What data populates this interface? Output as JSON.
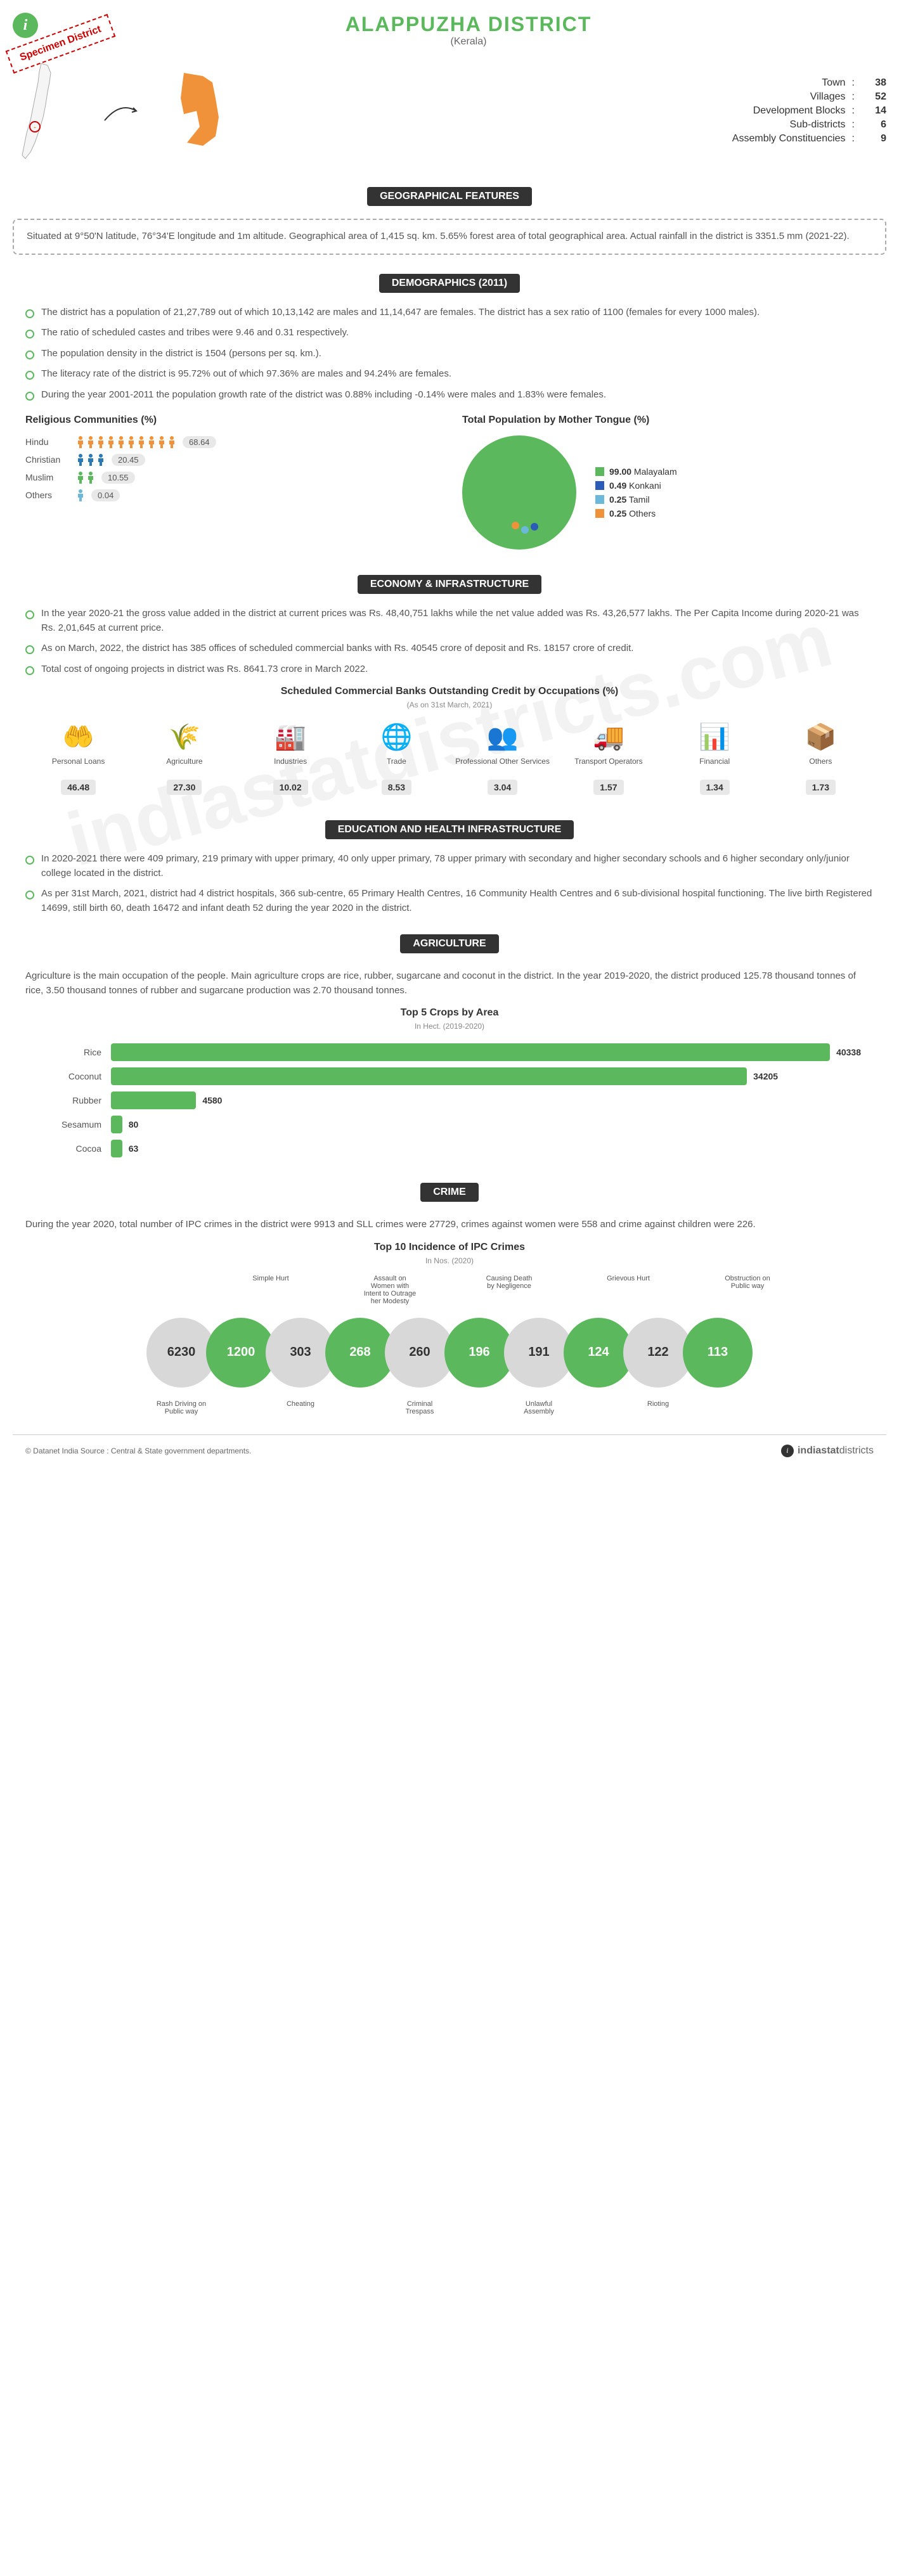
{
  "header": {
    "title": "ALAPPUZHA DISTRICT",
    "subtitle": "(Kerala)",
    "specimen": "Specimen District"
  },
  "top_stats": [
    {
      "label": "Town",
      "value": "38"
    },
    {
      "label": "Villages",
      "value": "52"
    },
    {
      "label": "Development Blocks",
      "value": "14"
    },
    {
      "label": "Sub-districts",
      "value": "6"
    },
    {
      "label": "Assembly Constituencies",
      "value": "9"
    }
  ],
  "sections": {
    "geo": {
      "title": "GEOGRAPHICAL FEATURES",
      "text": "Situated at 9°50'N latitude, 76°34'E longitude and 1m altitude. Geographical area of 1,415 sq. km. 5.65% forest area of total geographical area. Actual rainfall in the district is 3351.5 mm (2021-22)."
    },
    "demo": {
      "title": "DEMOGRAPHICS (2011)"
    },
    "econ": {
      "title": "ECONOMY & INFRASTRUCTURE"
    },
    "edu": {
      "title": "EDUCATION AND HEALTH INFRASTRUCTURE"
    },
    "agri": {
      "title": "AGRICULTURE"
    },
    "crime": {
      "title": "CRIME"
    }
  },
  "demographics_bullets": [
    "The district has a population of 21,27,789 out of which 10,13,142 are males and 11,14,647 are females. The district has a sex ratio of 1100 (females for every 1000 males).",
    "The ratio of scheduled castes and tribes were 9.46 and 0.31 respectively.",
    "The population density in the district is 1504 (persons per sq. km.).",
    "The literacy rate of the district is 95.72% out of which 97.36% are males and 94.24% are females.",
    "During the year 2001-2011 the population growth rate of the district was 0.88% including -0.14% were males and 1.83% were females."
  ],
  "religion": {
    "title": "Religious Communities (%)",
    "rows": [
      {
        "label": "Hindu",
        "value": "68.64",
        "icons": 10,
        "color": "#f0923a"
      },
      {
        "label": "Christian",
        "value": "20.45",
        "icons": 3,
        "color": "#2a7ab8"
      },
      {
        "label": "Muslim",
        "value": "10.55",
        "icons": 2,
        "color": "#5cb85c"
      },
      {
        "label": "Others",
        "value": "0.04",
        "icons": 1,
        "color": "#6bb8d8"
      }
    ]
  },
  "mothertongue": {
    "title": "Total Population by Mother Tongue (%)",
    "slices": [
      {
        "label": "Malayalam",
        "value": "99.00",
        "color": "#5cb85c"
      },
      {
        "label": "Konkani",
        "value": "0.49",
        "color": "#2a5cb8"
      },
      {
        "label": "Tamil",
        "value": "0.25",
        "color": "#6bb8d8"
      },
      {
        "label": "Others",
        "value": "0.25",
        "color": "#f0923a"
      }
    ]
  },
  "economy_bullets": [
    "In the year 2020-21 the gross value added in the district at current prices was Rs. 48,40,751 lakhs while the net value added was Rs. 43,26,577 lakhs. The Per Capita Income during 2020-21 was Rs. 2,01,645 at current price.",
    "As on March, 2022, the district has 385 offices of scheduled commercial banks with Rs. 40545 crore of deposit and Rs. 18157 crore of credit.",
    "Total cost of ongoing projects in district was Rs. 8641.73 crore in March 2022."
  ],
  "bank_credit": {
    "title": "Scheduled Commercial Banks Outstanding Credit by Occupations (%)",
    "note": "(As on 31st March, 2021)",
    "items": [
      {
        "label": "Personal Loans",
        "value": "46.48",
        "icon": "hand"
      },
      {
        "label": "Agriculture",
        "value": "27.30",
        "icon": "wheat"
      },
      {
        "label": "Industries",
        "value": "10.02",
        "icon": "factory"
      },
      {
        "label": "Trade",
        "value": "8.53",
        "icon": "globe"
      },
      {
        "label": "Professional Other Services",
        "value": "3.04",
        "icon": "people"
      },
      {
        "label": "Transport Operators",
        "value": "1.57",
        "icon": "truck"
      },
      {
        "label": "Financial",
        "value": "1.34",
        "icon": "chart"
      },
      {
        "label": "Others",
        "value": "1.73",
        "icon": "box"
      }
    ]
  },
  "education_bullets": [
    "In 2020-2021 there were 409 primary, 219 primary with upper primary, 40 only upper primary, 78 upper primary with secondary and higher secondary schools and 6 higher secondary only/junior college located in the district.",
    "As per 31st March, 2021, district had 4 district hospitals, 366 sub-centre, 65 Primary Health Centres, 16 Community Health Centres and 6 sub-divisional hospital functioning. The live birth Registered 14699, still birth 60, death 16472 and infant death 52 during the year 2020 in the district."
  ],
  "agriculture_text": "Agriculture is the main occupation of the people. Main agriculture crops are rice, rubber, sugarcane and coconut in the district. In the year 2019-2020, the district produced 125.78 thousand tonnes of rice, 3.50 thousand tonnes of rubber and sugarcane production was 2.70 thousand tonnes.",
  "crops": {
    "title": "Top 5 Crops by Area",
    "note": "In Hect. (2019-2020)",
    "max": 40338,
    "items": [
      {
        "label": "Rice",
        "value": 40338
      },
      {
        "label": "Coconut",
        "value": 34205
      },
      {
        "label": "Rubber",
        "value": 4580
      },
      {
        "label": "Sesamum",
        "value": 80
      },
      {
        "label": "Cocoa",
        "value": 63
      }
    ],
    "bar_color": "#5cb85c"
  },
  "crime_text": "During the year 2020, total number of IPC crimes in the district were 9913 and SLL crimes were 27729, crimes against women were 558 and crime against children were 226.",
  "crime_chart": {
    "title": "Top 10 Incidence of IPC Crimes",
    "note": "In Nos. (2020)",
    "circles": [
      {
        "value": "6230",
        "label": "Rash Driving on Public way",
        "pos": "bottom",
        "bg": "#d8d8d8",
        "fg": "#333"
      },
      {
        "value": "1200",
        "label": "Simple Hurt",
        "pos": "top",
        "bg": "#5cb85c",
        "fg": "#fff"
      },
      {
        "value": "303",
        "label": "Cheating",
        "pos": "bottom",
        "bg": "#d8d8d8",
        "fg": "#333"
      },
      {
        "value": "268",
        "label": "Assault on Women with Intent to Outrage her Modesty",
        "pos": "top",
        "bg": "#5cb85c",
        "fg": "#fff"
      },
      {
        "value": "260",
        "label": "Criminal Trespass",
        "pos": "bottom",
        "bg": "#d8d8d8",
        "fg": "#333"
      },
      {
        "value": "196",
        "label": "Causing Death by Negligence",
        "pos": "top",
        "bg": "#5cb85c",
        "fg": "#fff"
      },
      {
        "value": "191",
        "label": "Unlawful Assembly",
        "pos": "bottom",
        "bg": "#d8d8d8",
        "fg": "#333"
      },
      {
        "value": "124",
        "label": "Grievous Hurt",
        "pos": "top",
        "bg": "#5cb85c",
        "fg": "#fff"
      },
      {
        "value": "122",
        "label": "Rioting",
        "pos": "bottom",
        "bg": "#d8d8d8",
        "fg": "#333"
      },
      {
        "value": "113",
        "label": "Obstruction on Public way",
        "pos": "top",
        "bg": "#5cb85c",
        "fg": "#fff"
      }
    ]
  },
  "footer": {
    "left": "© Datanet India  Source : Central & State government departments.",
    "right_brand": "indiastat",
    "right_suffix": "districts"
  },
  "watermark": "indiastatdistricts.com",
  "colors": {
    "primary": "#5cb85c",
    "district_fill": "#f0923a"
  }
}
